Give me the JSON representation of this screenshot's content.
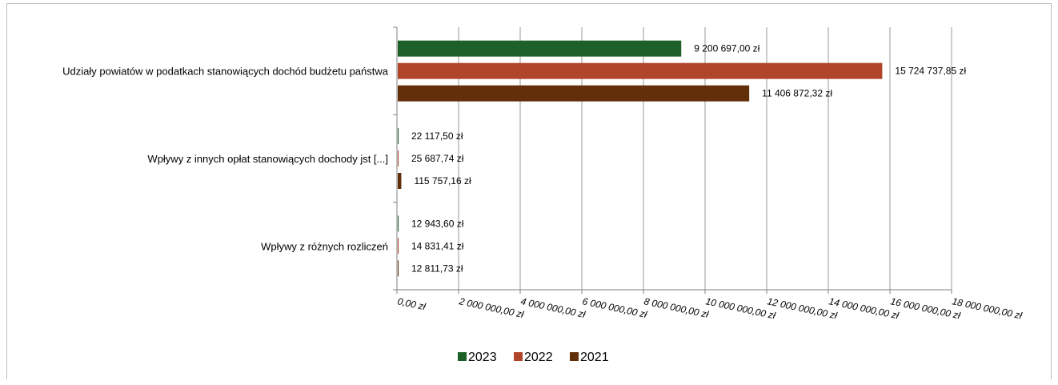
{
  "chart_data": {
    "type": "bar",
    "orientation": "horizontal",
    "categories": [
      "Udziały powiatów w podatkach stanowiących dochód budżetu państwa",
      "Wpływy z innych opłat stanowiących dochody jst [...]",
      "Wpływy z różnych rozliczeń"
    ],
    "series": [
      {
        "name": "2023",
        "color": "#1e6128",
        "values": [
          9200697.0,
          22117.5,
          12943.6
        ],
        "labels": [
          "9 200 697,00 zł",
          "22 117,50 zł",
          "12 943,60 zł"
        ]
      },
      {
        "name": "2022",
        "color": "#b0452a",
        "values": [
          15724737.85,
          25687.74,
          14831.41
        ],
        "labels": [
          "15 724 737,85 zł",
          "25 687,74 zł",
          "14 831,41 zł"
        ]
      },
      {
        "name": "2021",
        "color": "#622f0a",
        "values": [
          11406872.32,
          115757.16,
          12811.73
        ],
        "labels": [
          "11 406 872,32 zł",
          "115 757,16 zł",
          "12 811,73 zł"
        ]
      }
    ],
    "xlim": [
      0,
      18000000
    ],
    "xticks": [
      0,
      2000000,
      4000000,
      6000000,
      8000000,
      10000000,
      12000000,
      14000000,
      16000000,
      18000000
    ],
    "xtick_labels": [
      "0,00 zł",
      "2 000 000,00 zł",
      "4 000 000,00 zł",
      "6 000 000,00 zł",
      "8 000 000,00 zł",
      "10 000 000,00 zł",
      "12 000 000,00 zł",
      "14 000 000,00 zł",
      "16 000 000,00 zł",
      "18 000 000,00 zł"
    ],
    "grid": true,
    "legend_position": "bottom"
  }
}
